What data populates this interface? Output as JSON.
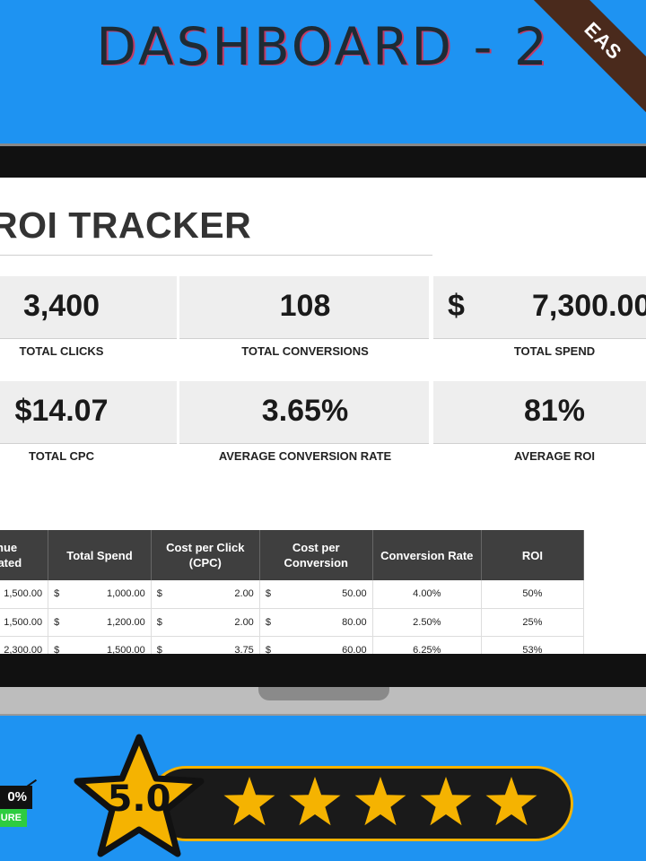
{
  "header": {
    "title": "DASHBOARD - 2",
    "ribbon": "EAS"
  },
  "tracker": {
    "title": "ROI TRACKER"
  },
  "kpis": [
    {
      "value": "3,400",
      "label": "TOTAL CLICKS"
    },
    {
      "value": "108",
      "label": "TOTAL CONVERSIONS"
    },
    {
      "currency": "$",
      "value": "7,300.00",
      "label": "TOTAL SPEND"
    },
    {
      "value": "$14.07",
      "label": "TOTAL CPC"
    },
    {
      "value": "3.65%",
      "label": "AVERAGE CONVERSION RATE"
    },
    {
      "value": "81%",
      "label": "AVERAGE ROI"
    }
  ],
  "table": {
    "headers": [
      "Revenue Generated",
      "Total Spend",
      "Cost per Click (CPC)",
      "Cost per Conversion",
      "Conversion Rate",
      "ROI"
    ],
    "rows": [
      {
        "revenue": "1,500.00",
        "spend": "1,000.00",
        "cpc": "2.00",
        "cpconv": "50.00",
        "rate": "4.00%",
        "roi": "50%"
      },
      {
        "revenue": "1,500.00",
        "spend": "1,200.00",
        "cpc": "2.00",
        "cpconv": "80.00",
        "rate": "2.50%",
        "roi": "25%"
      },
      {
        "revenue": "2,300.00",
        "spend": "1,500.00",
        "cpc": "3.75",
        "cpconv": "60.00",
        "rate": "6.25%",
        "roi": "53%"
      }
    ],
    "currency": "$"
  },
  "badge": {
    "top": "0%",
    "bottom": "URE"
  },
  "rating": {
    "value": "5.0",
    "stars": 5
  },
  "colors": {
    "background": "#1e93f2",
    "star": "#f5b301",
    "table_header": "#3f3f3f",
    "badge_green": "#2ecc40"
  }
}
